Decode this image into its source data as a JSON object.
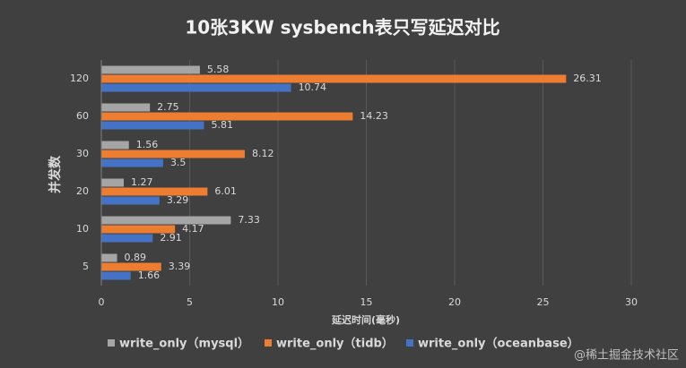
{
  "chart_data": {
    "type": "hbar",
    "title": "10张3KW sysbench表只写延迟对比",
    "xlabel": "延迟时间(毫秒)",
    "ylabel": "并发数",
    "categories": [
      "5",
      "10",
      "20",
      "30",
      "60",
      "120"
    ],
    "series": [
      {
        "name": "write_only（mysql）",
        "color": "#a5a5a5",
        "values": [
          0.89,
          7.33,
          1.27,
          1.56,
          2.75,
          5.58
        ]
      },
      {
        "name": "write_only（tidb）",
        "color": "#ed7d31",
        "values": [
          3.39,
          4.17,
          6.01,
          8.12,
          14.23,
          26.31
        ]
      },
      {
        "name": "write_only（oceanbase）",
        "color": "#4472c4",
        "values": [
          1.66,
          2.91,
          3.29,
          3.5,
          5.81,
          10.74
        ]
      }
    ],
    "xlim": [
      0,
      30
    ],
    "xticks": [
      0,
      5,
      10,
      15,
      20,
      25,
      30
    ],
    "grid": true,
    "legend": "bottom",
    "watermark": "@稀土掘金技术社区"
  }
}
